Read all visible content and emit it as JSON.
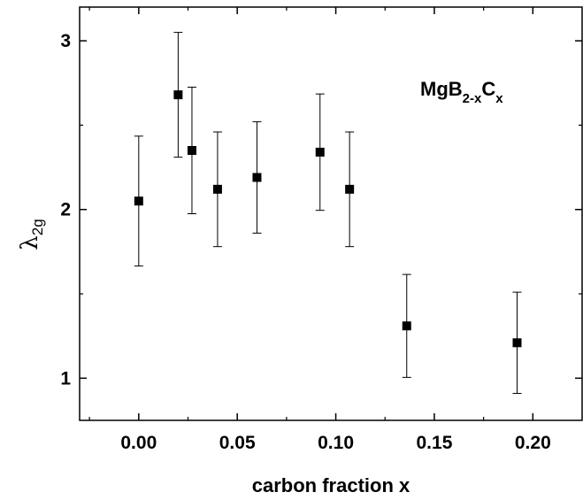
{
  "chart_data": {
    "type": "scatter",
    "xlabel": "carbon fraction x",
    "ylabel_main": "λ",
    "ylabel_sub": "2g",
    "annotation_main_1": "MgB",
    "annotation_sub_1": "2-x",
    "annotation_main_2": "C",
    "annotation_sub_2": "x",
    "xlim": [
      -0.03,
      0.225
    ],
    "ylim": [
      0.75,
      3.2
    ],
    "xticks": [
      0.0,
      0.05,
      0.1,
      0.15,
      0.2
    ],
    "xtick_labels": [
      "0.00",
      "0.05",
      "0.10",
      "0.15",
      "0.20"
    ],
    "yticks": [
      1,
      2,
      3
    ],
    "ytick_labels": [
      "1",
      "2",
      "3"
    ],
    "grid": false,
    "marker": "square",
    "color": "#000000",
    "points": [
      {
        "x": 0.0,
        "y": 2.05,
        "err": 0.385
      },
      {
        "x": 0.02,
        "y": 2.68,
        "err": 0.37
      },
      {
        "x": 0.027,
        "y": 2.35,
        "err": 0.375
      },
      {
        "x": 0.04,
        "y": 2.12,
        "err": 0.34
      },
      {
        "x": 0.06,
        "y": 2.19,
        "err": 0.33
      },
      {
        "x": 0.092,
        "y": 2.34,
        "err": 0.345
      },
      {
        "x": 0.107,
        "y": 2.12,
        "err": 0.34
      },
      {
        "x": 0.136,
        "y": 1.31,
        "err": 0.305
      },
      {
        "x": 0.192,
        "y": 1.21,
        "err": 0.3
      }
    ]
  }
}
